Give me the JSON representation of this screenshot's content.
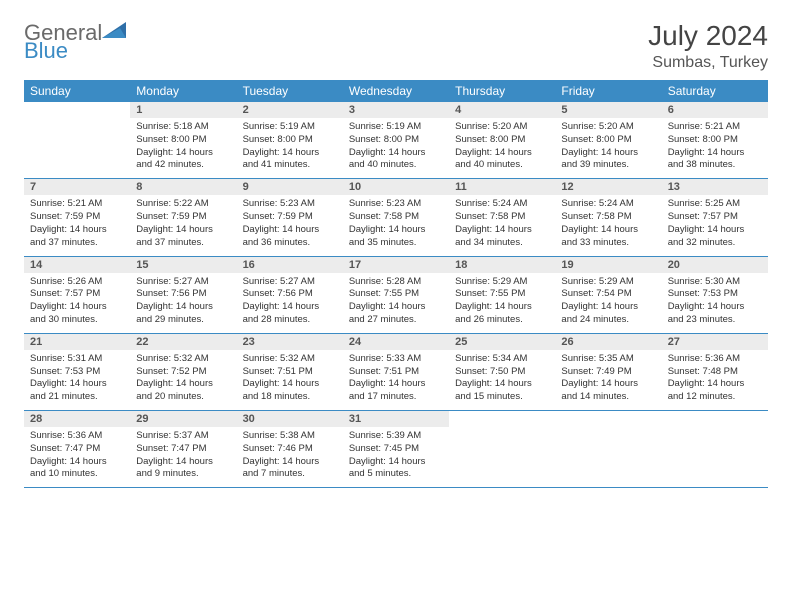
{
  "brand": {
    "name1": "General",
    "name2": "Blue"
  },
  "title": "July 2024",
  "location": "Sumbas, Turkey",
  "weekdays": [
    "Sunday",
    "Monday",
    "Tuesday",
    "Wednesday",
    "Thursday",
    "Friday",
    "Saturday"
  ],
  "colors": {
    "header_bg": "#3b8bc4",
    "header_text": "#ffffff",
    "daynum_bg": "#ececec",
    "border": "#3b8bc4",
    "logo_gray": "#6a6a6a",
    "logo_blue": "#3b8bc4"
  },
  "days": {
    "1": {
      "sunrise": "5:18 AM",
      "sunset": "8:00 PM",
      "daylight": "14 hours and 42 minutes."
    },
    "2": {
      "sunrise": "5:19 AM",
      "sunset": "8:00 PM",
      "daylight": "14 hours and 41 minutes."
    },
    "3": {
      "sunrise": "5:19 AM",
      "sunset": "8:00 PM",
      "daylight": "14 hours and 40 minutes."
    },
    "4": {
      "sunrise": "5:20 AM",
      "sunset": "8:00 PM",
      "daylight": "14 hours and 40 minutes."
    },
    "5": {
      "sunrise": "5:20 AM",
      "sunset": "8:00 PM",
      "daylight": "14 hours and 39 minutes."
    },
    "6": {
      "sunrise": "5:21 AM",
      "sunset": "8:00 PM",
      "daylight": "14 hours and 38 minutes."
    },
    "7": {
      "sunrise": "5:21 AM",
      "sunset": "7:59 PM",
      "daylight": "14 hours and 37 minutes."
    },
    "8": {
      "sunrise": "5:22 AM",
      "sunset": "7:59 PM",
      "daylight": "14 hours and 37 minutes."
    },
    "9": {
      "sunrise": "5:23 AM",
      "sunset": "7:59 PM",
      "daylight": "14 hours and 36 minutes."
    },
    "10": {
      "sunrise": "5:23 AM",
      "sunset": "7:58 PM",
      "daylight": "14 hours and 35 minutes."
    },
    "11": {
      "sunrise": "5:24 AM",
      "sunset": "7:58 PM",
      "daylight": "14 hours and 34 minutes."
    },
    "12": {
      "sunrise": "5:24 AM",
      "sunset": "7:58 PM",
      "daylight": "14 hours and 33 minutes."
    },
    "13": {
      "sunrise": "5:25 AM",
      "sunset": "7:57 PM",
      "daylight": "14 hours and 32 minutes."
    },
    "14": {
      "sunrise": "5:26 AM",
      "sunset": "7:57 PM",
      "daylight": "14 hours and 30 minutes."
    },
    "15": {
      "sunrise": "5:27 AM",
      "sunset": "7:56 PM",
      "daylight": "14 hours and 29 minutes."
    },
    "16": {
      "sunrise": "5:27 AM",
      "sunset": "7:56 PM",
      "daylight": "14 hours and 28 minutes."
    },
    "17": {
      "sunrise": "5:28 AM",
      "sunset": "7:55 PM",
      "daylight": "14 hours and 27 minutes."
    },
    "18": {
      "sunrise": "5:29 AM",
      "sunset": "7:55 PM",
      "daylight": "14 hours and 26 minutes."
    },
    "19": {
      "sunrise": "5:29 AM",
      "sunset": "7:54 PM",
      "daylight": "14 hours and 24 minutes."
    },
    "20": {
      "sunrise": "5:30 AM",
      "sunset": "7:53 PM",
      "daylight": "14 hours and 23 minutes."
    },
    "21": {
      "sunrise": "5:31 AM",
      "sunset": "7:53 PM",
      "daylight": "14 hours and 21 minutes."
    },
    "22": {
      "sunrise": "5:32 AM",
      "sunset": "7:52 PM",
      "daylight": "14 hours and 20 minutes."
    },
    "23": {
      "sunrise": "5:32 AM",
      "sunset": "7:51 PM",
      "daylight": "14 hours and 18 minutes."
    },
    "24": {
      "sunrise": "5:33 AM",
      "sunset": "7:51 PM",
      "daylight": "14 hours and 17 minutes."
    },
    "25": {
      "sunrise": "5:34 AM",
      "sunset": "7:50 PM",
      "daylight": "14 hours and 15 minutes."
    },
    "26": {
      "sunrise": "5:35 AM",
      "sunset": "7:49 PM",
      "daylight": "14 hours and 14 minutes."
    },
    "27": {
      "sunrise": "5:36 AM",
      "sunset": "7:48 PM",
      "daylight": "14 hours and 12 minutes."
    },
    "28": {
      "sunrise": "5:36 AM",
      "sunset": "7:47 PM",
      "daylight": "14 hours and 10 minutes."
    },
    "29": {
      "sunrise": "5:37 AM",
      "sunset": "7:47 PM",
      "daylight": "14 hours and 9 minutes."
    },
    "30": {
      "sunrise": "5:38 AM",
      "sunset": "7:46 PM",
      "daylight": "14 hours and 7 minutes."
    },
    "31": {
      "sunrise": "5:39 AM",
      "sunset": "7:45 PM",
      "daylight": "14 hours and 5 minutes."
    }
  },
  "labels": {
    "sunrise": "Sunrise:",
    "sunset": "Sunset:",
    "daylight": "Daylight:"
  },
  "start_weekday": 1,
  "num_days": 31
}
